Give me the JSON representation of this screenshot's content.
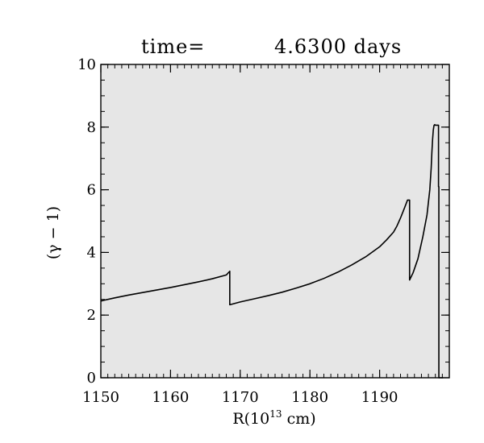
{
  "chart_data": {
    "type": "line",
    "title_prefix": "time=",
    "title_value": "4.6300 days",
    "xlabel": "R(10",
    "xlabel_sup": "13",
    "xlabel_suffix": " cm)",
    "ylabel": "(γ − 1)",
    "xlim": [
      1150,
      1200
    ],
    "ylim": [
      0,
      10
    ],
    "xticks": [
      1150,
      1160,
      1170,
      1180,
      1190
    ],
    "yticks": [
      0,
      2,
      4,
      6,
      8,
      10
    ],
    "x_minor_step": 1,
    "y_minor_step": 0.5,
    "background": "#e6e6e6",
    "line_color": "#000000",
    "grid": false,
    "legend": "none",
    "series": [
      {
        "x": [
          1150,
          1152,
          1154,
          1156,
          1158,
          1160,
          1162,
          1164,
          1166,
          1168,
          1168.5,
          1168.5,
          1170,
          1172,
          1174,
          1176,
          1178,
          1180,
          1182,
          1184,
          1186,
          1188,
          1190,
          1191,
          1192,
          1192.5,
          1193,
          1193.5,
          1194,
          1194.3,
          1194.3,
          1194.8,
          1195.5,
          1196.2,
          1196.8,
          1197.2,
          1197.4,
          1197.5,
          1197.6,
          1197.7,
          1197.8,
          1197.9,
          1198.0,
          1198.1,
          1198.2,
          1198.35,
          1198.45,
          1198.45,
          1198.5,
          1198.5,
          1198.9,
          1199.1
        ],
        "y": [
          2.45,
          2.55,
          2.64,
          2.72,
          2.8,
          2.88,
          2.97,
          3.06,
          3.16,
          3.28,
          3.4,
          2.33,
          2.42,
          2.52,
          2.62,
          2.73,
          2.86,
          3.0,
          3.17,
          3.37,
          3.6,
          3.86,
          4.18,
          4.4,
          4.65,
          4.85,
          5.1,
          5.38,
          5.67,
          5.67,
          3.12,
          3.35,
          3.8,
          4.5,
          5.2,
          6.0,
          6.7,
          7.2,
          7.6,
          7.9,
          8.05,
          8.08,
          8.06,
          8.06,
          8.06,
          8.06,
          8.06,
          6.1,
          6.1,
          0.0,
          0.0,
          0.0
        ]
      }
    ]
  }
}
